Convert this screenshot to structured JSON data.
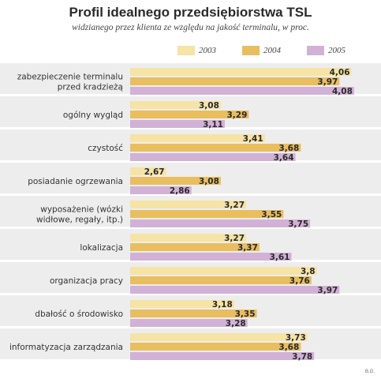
{
  "chart_data": {
    "type": "bar",
    "orientation": "horizontal",
    "title": "Profil idealnego przedsiębiorstwa TSL",
    "subtitle": "widzianego przez klienta ze względu na jakość terminalu, w proc.",
    "categories": [
      [
        "zabezpieczenie terminalu",
        "przed kradzieżą"
      ],
      [
        "ogólny wygląd"
      ],
      [
        "czystość"
      ],
      [
        "posiadanie ogrzewania"
      ],
      [
        "wyposażenie (wózki",
        "widłowe, regały, itp.)"
      ],
      [
        "lokalizacja"
      ],
      [
        "organizacja pracy"
      ],
      [
        "dbałość o środowisko"
      ],
      [
        "informatyzacja zarządzania"
      ]
    ],
    "series": [
      {
        "name": "2003",
        "color": "#f6e3a6",
        "values": [
          4.06,
          3.08,
          3.41,
          2.67,
          3.27,
          3.27,
          3.8,
          3.18,
          3.73
        ],
        "labels": [
          "4,06",
          "3,08",
          "3,41",
          "2,67",
          "3,27",
          "3,27",
          "3,8",
          "3,18",
          "3,73"
        ]
      },
      {
        "name": "2004",
        "color": "#e9be5f",
        "values": [
          3.97,
          3.29,
          3.68,
          3.08,
          3.55,
          3.37,
          3.76,
          3.35,
          3.68
        ],
        "labels": [
          "3,97",
          "3,29",
          "3,68",
          "3,08",
          "3,55",
          "3,37",
          "3,76",
          "3,35",
          "3,68"
        ]
      },
      {
        "name": "2005",
        "color": "#d2b1d6",
        "values": [
          4.08,
          3.11,
          3.64,
          2.86,
          3.75,
          3.61,
          3.97,
          3.28,
          3.78
        ],
        "labels": [
          "4,08",
          "3,11",
          "3,64",
          "2,86",
          "3,75",
          "3,61",
          "3,97",
          "3,28",
          "3,78"
        ]
      }
    ],
    "legend_position": "top-right",
    "grid": false,
    "source_note": "B.G."
  }
}
